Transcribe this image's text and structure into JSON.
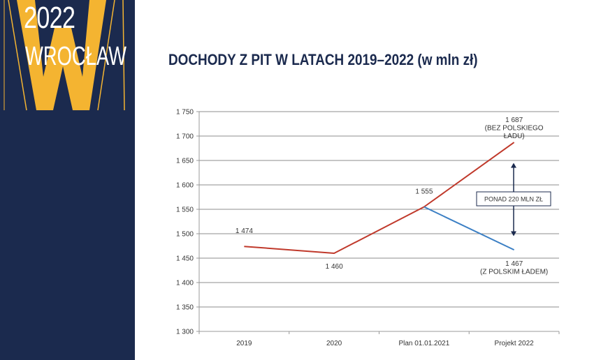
{
  "branding": {
    "year": "2022",
    "city": "WROCŁAW",
    "mark": "W",
    "sidebar_color": "#1b2a4e",
    "accent_color": "#f4b431"
  },
  "slide": {
    "title": "DOCHODY Z PIT W LATACH 2019–2022 (w mln zł)"
  },
  "chart_data": {
    "type": "line",
    "categories": [
      "2019",
      "2020",
      "Plan 01.01.2021",
      "Projekt 2022"
    ],
    "ylim": [
      1300,
      1750
    ],
    "yticks": [
      "1 300",
      "1 350",
      "1 400",
      "1 450",
      "1 500",
      "1 550",
      "1 600",
      "1 650",
      "1 700",
      "1 750"
    ],
    "grid": "horizontal",
    "series": [
      {
        "color": "#c0392b",
        "values": [
          1474,
          1460,
          1555,
          1687
        ]
      },
      {
        "color": "#3b7fc4",
        "values": [
          null,
          null,
          1555,
          1467
        ]
      }
    ],
    "data_labels": [
      {
        "category": 0,
        "value": 1474,
        "lines": [
          "1 474"
        ]
      },
      {
        "category": 1,
        "value": 1460,
        "lines": [
          "1 460"
        ]
      },
      {
        "category": 2,
        "value": 1555,
        "lines": [
          "1 555"
        ]
      },
      {
        "category": 3,
        "value": 1687,
        "lines": [
          "1 687",
          "(BEZ POLSKIEGO",
          "ŁADU)"
        ]
      },
      {
        "category": 3,
        "value": 1467,
        "lines": [
          "1 467",
          "(Z POLSKIM ŁADEM)"
        ]
      }
    ],
    "annotation": {
      "text": "PONAD 220 MLN ZŁ",
      "arrow_from": 1645,
      "arrow_to": 1495
    }
  }
}
